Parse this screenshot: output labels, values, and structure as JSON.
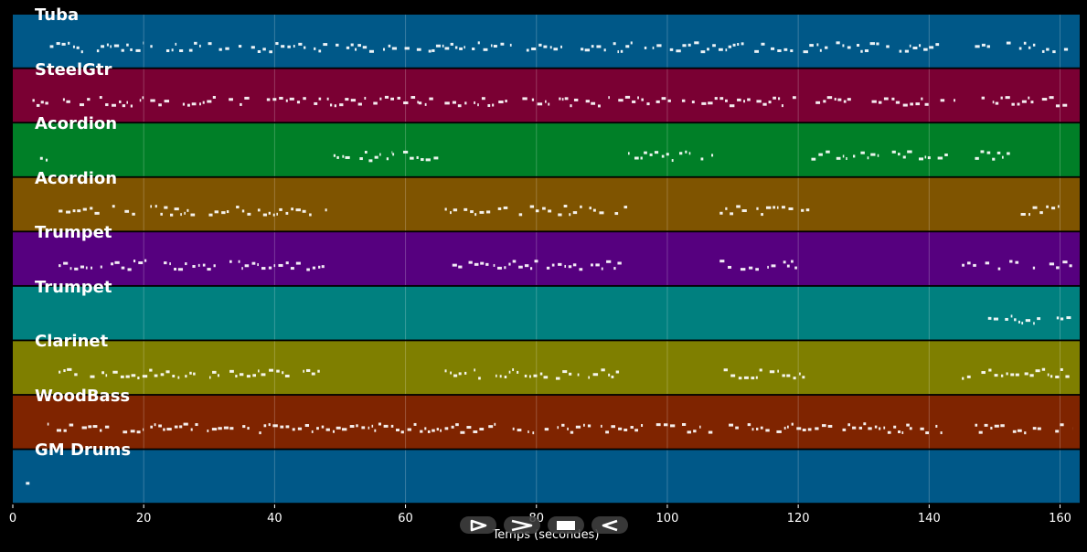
{
  "chart_data": {
    "type": "piano-roll",
    "xlabel": "Temps (secondes)",
    "xlim": [
      0,
      163
    ],
    "xticks": [
      0,
      20,
      40,
      60,
      80,
      100,
      120,
      140,
      160
    ],
    "tracks": [
      {
        "name": "Tuba",
        "color": "#005888",
        "activity": [
          [
            4,
            20
          ],
          [
            21,
            64
          ],
          [
            64,
            66
          ],
          [
            66,
            137
          ],
          [
            137,
            142
          ],
          [
            147,
            162
          ]
        ]
      },
      {
        "name": "SteelGtr",
        "color": "#7a0033",
        "activity": [
          [
            3,
            20
          ],
          [
            21,
            48
          ],
          [
            48,
            62
          ],
          [
            62,
            68
          ],
          [
            68,
            136
          ],
          [
            136,
            144
          ],
          [
            148,
            162
          ]
        ]
      },
      {
        "name": "Acordion",
        "color": "#007f27",
        "activity": [
          [
            3,
            6
          ],
          [
            49,
            58
          ],
          [
            58,
            65
          ],
          [
            94,
            107
          ],
          [
            122,
            136
          ],
          [
            136,
            143
          ],
          [
            147,
            154
          ]
        ]
      },
      {
        "name": "Acordion",
        "color": "#7f5400",
        "activity": [
          [
            7,
            20
          ],
          [
            21,
            48
          ],
          [
            66,
            94
          ],
          [
            108,
            122
          ],
          [
            154,
            162
          ]
        ]
      },
      {
        "name": "Trumpet",
        "color": "#56007f",
        "activity": [
          [
            7,
            48
          ],
          [
            66,
            93
          ],
          [
            108,
            121
          ],
          [
            145,
            162
          ]
        ]
      },
      {
        "name": "Trumpet",
        "color": "#00807f",
        "activity": [
          [
            149,
            162
          ]
        ]
      },
      {
        "name": "Clarinet",
        "color": "#7f7f00",
        "activity": [
          [
            7,
            48
          ],
          [
            66,
            93
          ],
          [
            108,
            121
          ],
          [
            145,
            162
          ]
        ]
      },
      {
        "name": "WoodBass",
        "color": "#7f2400",
        "activity": [
          [
            4,
            20
          ],
          [
            21,
            64
          ],
          [
            64,
            66
          ],
          [
            66,
            137
          ],
          [
            137,
            142
          ],
          [
            147,
            162
          ]
        ]
      },
      {
        "name": "GM Drums",
        "color": "#005888",
        "activity": [
          [
            2,
            3
          ]
        ]
      }
    ]
  },
  "controls": [
    {
      "name": "play-icon",
      "label": "play"
    },
    {
      "name": "fast-forward-icon",
      "label": "fast forward"
    },
    {
      "name": "stop-icon",
      "label": "stop"
    },
    {
      "name": "rewind-icon",
      "label": "rewind"
    }
  ]
}
